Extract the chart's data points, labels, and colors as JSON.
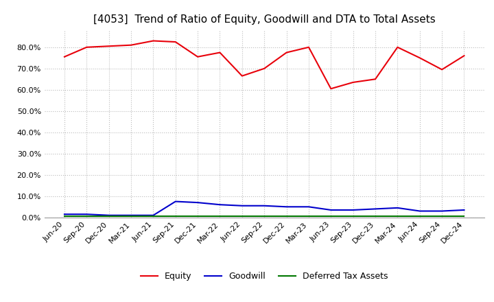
{
  "title": "[4053]  Trend of Ratio of Equity, Goodwill and DTA to Total Assets",
  "x_labels": [
    "Jun-20",
    "Sep-20",
    "Dec-20",
    "Mar-21",
    "Jun-21",
    "Sep-21",
    "Dec-21",
    "Mar-22",
    "Jun-22",
    "Sep-22",
    "Dec-22",
    "Mar-23",
    "Jun-23",
    "Sep-23",
    "Dec-23",
    "Mar-24",
    "Jun-24",
    "Sep-24",
    "Dec-24"
  ],
  "equity": [
    75.5,
    80.0,
    80.5,
    81.0,
    83.0,
    82.5,
    75.5,
    77.5,
    66.5,
    70.0,
    77.5,
    80.0,
    60.5,
    63.5,
    65.0,
    80.0,
    75.0,
    69.5,
    76.0
  ],
  "goodwill": [
    1.5,
    1.5,
    1.0,
    1.0,
    1.0,
    7.5,
    7.0,
    6.0,
    5.5,
    5.5,
    5.0,
    5.0,
    3.5,
    3.5,
    4.0,
    4.5,
    3.0,
    3.0,
    3.5
  ],
  "dta": [
    0.5,
    0.5,
    0.5,
    0.5,
    0.5,
    0.5,
    0.5,
    0.5,
    0.5,
    0.5,
    0.5,
    0.5,
    0.5,
    0.5,
    0.5,
    0.5,
    0.5,
    0.5,
    0.5
  ],
  "equity_color": "#e8000a",
  "goodwill_color": "#0000cc",
  "dta_color": "#007700",
  "ylim": [
    0,
    88
  ],
  "yticks": [
    0,
    10,
    20,
    30,
    40,
    50,
    60,
    70,
    80
  ],
  "background_color": "#ffffff",
  "plot_bg_color": "#ffffff",
  "grid_color": "#bbbbbb",
  "title_fontsize": 11,
  "tick_fontsize": 8,
  "legend_fontsize": 9
}
